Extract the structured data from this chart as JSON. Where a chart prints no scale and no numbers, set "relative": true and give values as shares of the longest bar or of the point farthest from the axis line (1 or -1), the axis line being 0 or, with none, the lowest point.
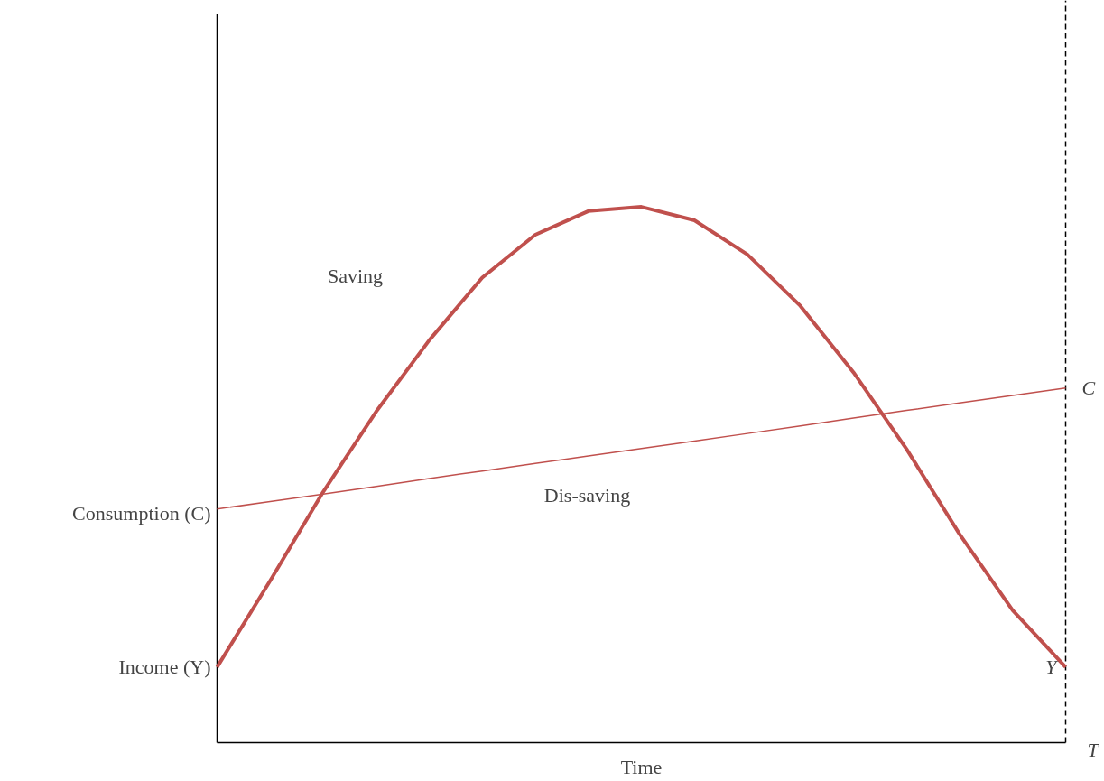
{
  "chart_data": {
    "type": "line",
    "relative": true,
    "xlabel": "Time",
    "categories": [
      null,
      null,
      null,
      null,
      null,
      null,
      null,
      null,
      null,
      null,
      null,
      null,
      null,
      null,
      null,
      null,
      null
    ],
    "series": [
      {
        "name": "Y",
        "color": "#c0504d",
        "values": [
          0.141,
          0.302,
          0.468,
          0.618,
          0.751,
          0.868,
          0.948,
          0.992,
          1.0,
          0.975,
          0.911,
          0.815,
          0.691,
          0.548,
          0.389,
          0.247,
          0.141
        ]
      },
      {
        "name": "C",
        "color": "#c0504d",
        "values": [
          0.436,
          0.45,
          0.464,
          0.478,
          0.493,
          0.507,
          0.521,
          0.535,
          0.549,
          0.563,
          0.577,
          0.591,
          0.606,
          0.62,
          0.634,
          0.648,
          0.662
        ]
      }
    ],
    "annotations": [
      "Income (Y)",
      "Consumption (C)",
      "Saving",
      "Dis-saving",
      "T"
    ],
    "marker": "none",
    "line_style": "solid"
  }
}
